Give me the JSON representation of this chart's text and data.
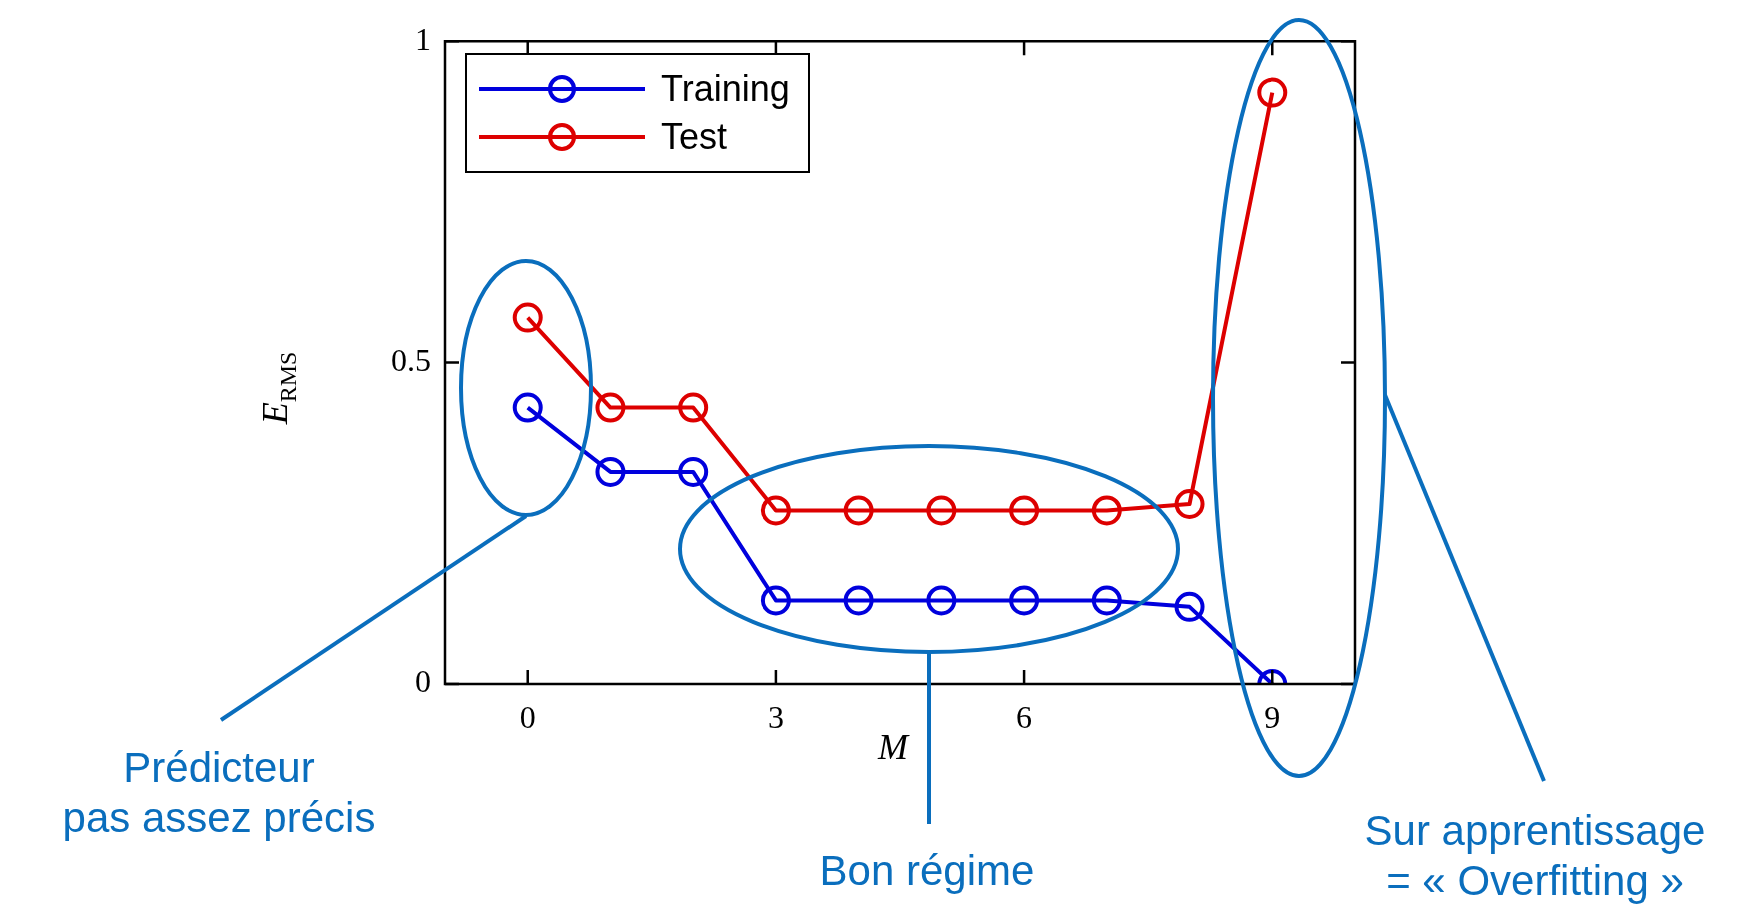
{
  "chart_data": {
    "type": "line",
    "xlabel": "M",
    "ylabel": "E$_{RMS}$",
    "x": [
      0,
      1,
      2,
      3,
      4,
      5,
      6,
      7,
      8,
      9
    ],
    "xlim": [
      -1,
      10
    ],
    "xticks": [
      0,
      3,
      6,
      9
    ],
    "ylim": [
      0,
      1
    ],
    "yticks": [
      0,
      0.5,
      1
    ],
    "series": [
      {
        "name": "Training",
        "color": "#0000dd",
        "values": [
          0.43,
          0.33,
          0.33,
          0.13,
          0.13,
          0.13,
          0.13,
          0.13,
          0.12,
          0
        ]
      },
      {
        "name": "Test",
        "color": "#dd0000",
        "values": [
          0.57,
          0.43,
          0.43,
          0.27,
          0.27,
          0.27,
          0.27,
          0.27,
          0.28,
          0.92
        ]
      }
    ],
    "marker": "circle",
    "line_style": "solid",
    "grid": false,
    "legend": "top left",
    "annotations": [
      "Prédicteur\npas assez précis",
      "Bon régime",
      "Sur apprentissage\n= « Overfitting »"
    ]
  }
}
